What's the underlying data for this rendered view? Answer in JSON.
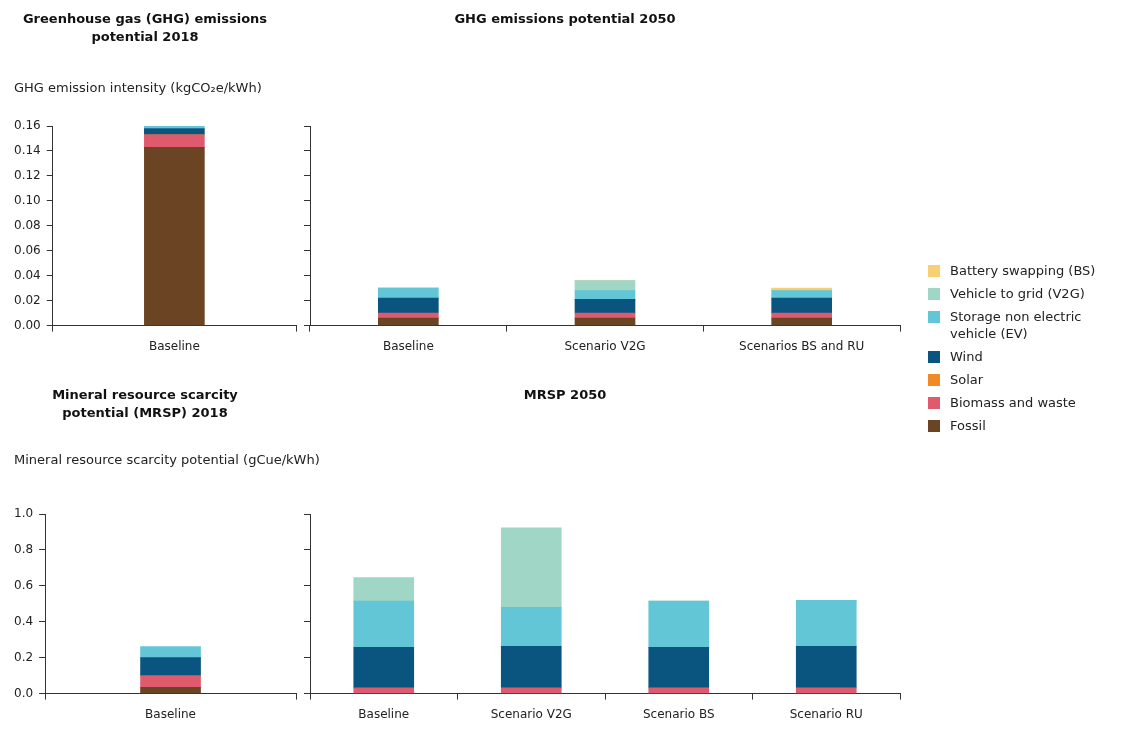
{
  "chart_data": [
    {
      "type": "bar",
      "title": "Greenhouse gas (GHG) emissions potential 2018",
      "ylabel": "GHG emission intensity (kgCO₂e/kWh)",
      "stacked": true,
      "legend": "right",
      "categories": [
        "Baseline"
      ],
      "ylim": [
        0,
        0.16
      ],
      "yticks": [
        {
          "value": 0,
          "label": "0.00"
        },
        {
          "value": 0.02,
          "label": "0.02"
        },
        {
          "value": 0.04,
          "label": "0.04"
        },
        {
          "value": 0.06,
          "label": "0.06"
        },
        {
          "value": 0.08,
          "label": "0.08"
        },
        {
          "value": 0.1,
          "label": "0.10"
        },
        {
          "value": 0.12,
          "label": "0.12"
        },
        {
          "value": 0.14,
          "label": "0.14"
        },
        {
          "value": 0.16,
          "label": "0.16"
        }
      ],
      "series": [
        {
          "name": "Fossil",
          "color": "#6b4423",
          "values": [
            0.143
          ]
        },
        {
          "name": "Biomass and waste",
          "color": "#e05a6d",
          "values": [
            0.01
          ]
        },
        {
          "name": "Solar",
          "color": "#f08a24",
          "values": [
            0
          ]
        },
        {
          "name": "Wind",
          "color": "#0a5480",
          "values": [
            0.005
          ]
        },
        {
          "name": "Storage non electric vehicle (EV)",
          "color": "#62c6d6",
          "values": [
            0.002
          ]
        },
        {
          "name": "Vehicle to grid (V2G)",
          "color": "#9fd6c6",
          "values": [
            0
          ]
        },
        {
          "name": "Battery swapping (BS)",
          "color": "#f9cf74",
          "values": [
            0
          ]
        }
      ]
    },
    {
      "type": "bar",
      "title": "GHG emissions potential 2050",
      "stacked": true,
      "tick_labels": "x",
      "categories": [
        "Baseline",
        "Scenario V2G",
        "Scenarios BS and RU"
      ],
      "ylim": [
        0,
        0.16
      ],
      "yticks": [
        0,
        0.02,
        0.04,
        0.06,
        0.08,
        0.1,
        0.12,
        0.14,
        0.16
      ],
      "series": [
        {
          "color": "#6b4423",
          "values": [
            0.006,
            0.006,
            0.006
          ]
        },
        {
          "color": "#e05a6d",
          "values": [
            0.004,
            0.004,
            0.004
          ]
        },
        {
          "color": "#0a5480",
          "values": [
            0.012,
            0.011,
            0.012
          ]
        },
        {
          "color": "#62c6d6",
          "values": [
            0.008,
            0.007,
            0.006
          ]
        },
        {
          "color": "#9fd6c6",
          "values": [
            0,
            0.008,
            0
          ]
        },
        {
          "color": "#f9cf74",
          "values": [
            0,
            0,
            0.002
          ]
        }
      ]
    },
    {
      "type": "bar",
      "title": "Mineral resource scarcity potential (MRSP) 2018",
      "ylabel": "Mineral resource scarcity potential (gCue/kWh)",
      "stacked": true,
      "categories": [
        "Baseline"
      ],
      "ylim": [
        0,
        1
      ],
      "yticks": [
        {
          "value": 0,
          "label": "0.0"
        },
        {
          "value": 0.2,
          "label": "0.2"
        },
        {
          "value": 0.4,
          "label": "0.4"
        },
        {
          "value": 0.6,
          "label": "0.6"
        },
        {
          "value": 0.8,
          "label": "0.8"
        },
        {
          "value": 1,
          "label": "1.0"
        }
      ],
      "series": [
        {
          "color": "#6b4423",
          "values": [
            0.035
          ]
        },
        {
          "color": "#e05a6d",
          "values": [
            0.065
          ]
        },
        {
          "color": "#0a5480",
          "values": [
            0.1
          ]
        },
        {
          "color": "#62c6d6",
          "values": [
            0.062
          ]
        }
      ]
    },
    {
      "type": "bar",
      "title": "MRSP 2050",
      "stacked": true,
      "tick_labels": "x",
      "categories": [
        "Baseline",
        "Scenario V2G",
        "Scenario BS",
        "Scenario RU"
      ],
      "ylim": [
        0,
        1
      ],
      "yticks": [
        0,
        0.2,
        0.4,
        0.6,
        0.8,
        1
      ],
      "series": [
        {
          "color": "#e05a6d",
          "values": [
            0.032,
            0.032,
            0.032,
            0.032
          ]
        },
        {
          "color": "#0a5480",
          "values": [
            0.225,
            0.231,
            0.225,
            0.231
          ]
        },
        {
          "color": "#62c6d6",
          "values": [
            0.258,
            0.218,
            0.258,
            0.256
          ]
        },
        {
          "color": "#9fd6c6",
          "values": [
            0.131,
            0.442,
            0,
            0
          ]
        }
      ]
    }
  ]
}
